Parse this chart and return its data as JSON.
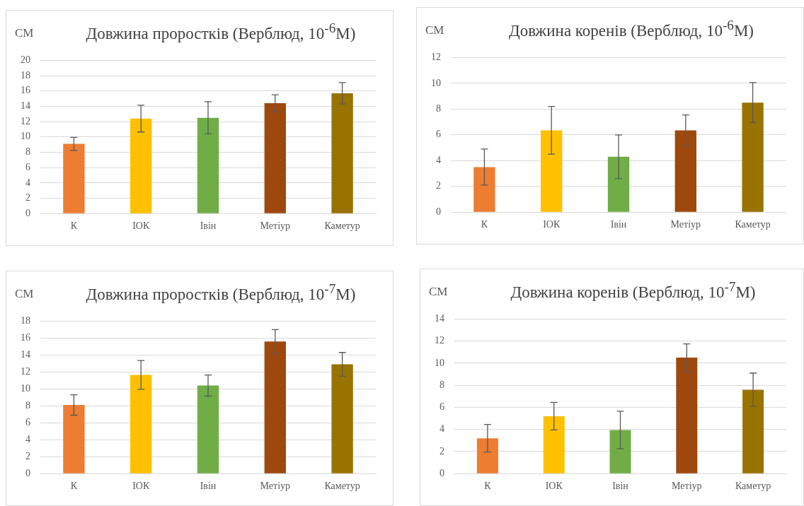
{
  "chart_data": [
    {
      "type": "bar",
      "title": "Довжина проростків (Верблюд, 10$^{-6}$М)",
      "ylabel": "СМ",
      "categories": [
        "К",
        "ІОК",
        "Івін",
        "Метіур",
        "Каметур"
      ],
      "colors": [
        "#ed7d31",
        "#ffc000",
        "#70ad47",
        "#9e480e",
        "#997300"
      ],
      "values": [
        9.1,
        12.4,
        12.5,
        14.4,
        15.7
      ],
      "errors": [
        0.85,
        1.75,
        2.1,
        1.1,
        1.4
      ],
      "ylim": [
        0,
        20
      ],
      "yticks": [
        0,
        2,
        4,
        6,
        8,
        10,
        12,
        14,
        16,
        18,
        20
      ],
      "grid": "y"
    },
    {
      "type": "bar",
      "title": "Довжина коренів (Верблюд, 10$^{-6}$М)",
      "ylabel": "СМ",
      "categories": [
        "К",
        "ІОК",
        "Івін",
        "Метіур",
        "Каметур"
      ],
      "colors": [
        "#ed7d31",
        "#ffc000",
        "#70ad47",
        "#9e480e",
        "#997300"
      ],
      "values": [
        3.5,
        6.35,
        4.3,
        6.35,
        8.5
      ],
      "errors": [
        1.4,
        1.85,
        1.7,
        1.2,
        1.55
      ],
      "ylim": [
        0,
        12
      ],
      "yticks": [
        0,
        2,
        4,
        6,
        8,
        10,
        12
      ],
      "grid": "y"
    },
    {
      "type": "bar",
      "title": "Довжина проростків (Верблюд, 10$^{-7}$М)",
      "ylabel": "СМ",
      "categories": [
        "К",
        "ІОК",
        "Івін",
        "Метіур",
        "Каметур"
      ],
      "colors": [
        "#ed7d31",
        "#ffc000",
        "#70ad47",
        "#9e480e",
        "#997300"
      ],
      "values": [
        8.1,
        11.65,
        10.4,
        15.6,
        12.9
      ],
      "errors": [
        1.2,
        1.7,
        1.25,
        1.4,
        1.4
      ],
      "ylim": [
        0,
        18
      ],
      "yticks": [
        0,
        2,
        4,
        6,
        8,
        10,
        12,
        14,
        16,
        18
      ],
      "grid": "y"
    },
    {
      "type": "bar",
      "title": "Довжина коренів (Верблюд, 10$^{-7}$М)",
      "ylabel": "СМ",
      "categories": [
        "К",
        "ІОК",
        "Івін",
        "Метіур",
        "Каметур"
      ],
      "colors": [
        "#ed7d31",
        "#ffc000",
        "#70ad47",
        "#9e480e",
        "#997300"
      ],
      "values": [
        3.2,
        5.2,
        3.95,
        10.5,
        7.6
      ],
      "errors": [
        1.25,
        1.25,
        1.7,
        1.25,
        1.5
      ],
      "ylim": [
        0,
        14
      ],
      "yticks": [
        0,
        2,
        4,
        6,
        8,
        10,
        12,
        14
      ],
      "grid": "y"
    }
  ]
}
